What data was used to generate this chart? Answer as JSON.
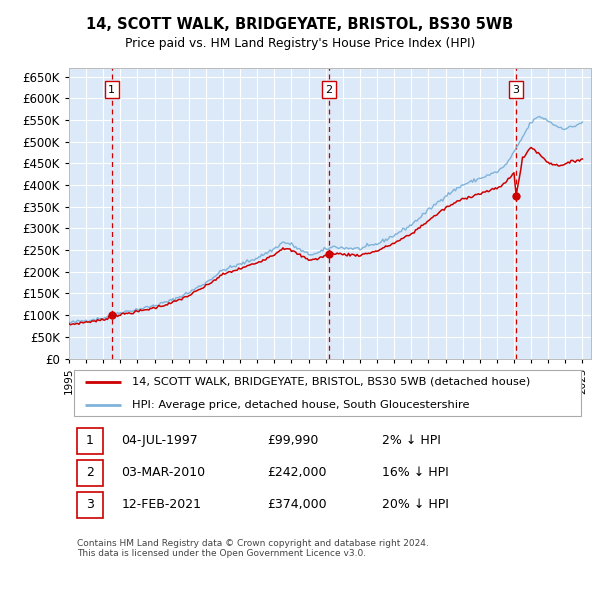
{
  "title": "14, SCOTT WALK, BRIDGEYATE, BRISTOL, BS30 5WB",
  "subtitle": "Price paid vs. HM Land Registry's House Price Index (HPI)",
  "plot_bg_color": "#dce9f8",
  "sale_color": "#cc0000",
  "hpi_color": "#7fb3d9",
  "vline_color": "#cc0000",
  "ylim": [
    0,
    670000
  ],
  "yticks": [
    0,
    50000,
    100000,
    150000,
    200000,
    250000,
    300000,
    350000,
    400000,
    450000,
    500000,
    550000,
    600000,
    650000
  ],
  "xlim": [
    1995.0,
    2025.5
  ],
  "xticks": [
    1995,
    1996,
    1997,
    1998,
    1999,
    2000,
    2001,
    2002,
    2003,
    2004,
    2005,
    2006,
    2007,
    2008,
    2009,
    2010,
    2011,
    2012,
    2013,
    2014,
    2015,
    2016,
    2017,
    2018,
    2019,
    2020,
    2021,
    2022,
    2023,
    2024,
    2025
  ],
  "transactions": [
    {
      "label": "1",
      "x": 1997.5,
      "price": 99990
    },
    {
      "label": "2",
      "x": 2010.17,
      "price": 242000
    },
    {
      "label": "3",
      "x": 2021.12,
      "price": 374000
    }
  ],
  "legend_sale_label": "14, SCOTT WALK, BRIDGEYATE, BRISTOL, BS30 5WB (detached house)",
  "legend_hpi_label": "HPI: Average price, detached house, South Gloucestershire",
  "table_rows": [
    {
      "num": "1",
      "date": "04-JUL-1997",
      "price": "£99,990",
      "pct": "2% ↓ HPI"
    },
    {
      "num": "2",
      "date": "03-MAR-2010",
      "price": "£242,000",
      "pct": "16% ↓ HPI"
    },
    {
      "num": "3",
      "date": "12-FEB-2021",
      "price": "£374,000",
      "pct": "20% ↓ HPI"
    }
  ],
  "footer": "Contains HM Land Registry data © Crown copyright and database right 2024.\nThis data is licensed under the Open Government Licence v3.0."
}
